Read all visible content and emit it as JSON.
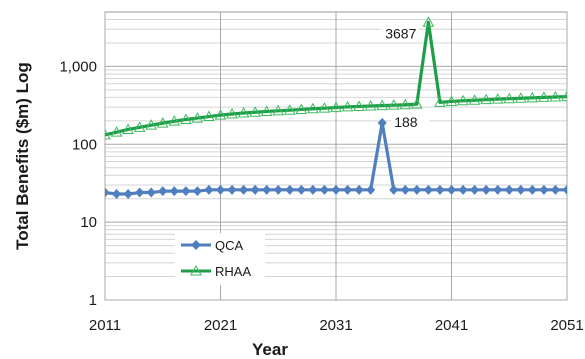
{
  "chart_data": {
    "type": "line",
    "title": "",
    "xlabel": "Year",
    "ylabel": "Total Benefits ($m) Log",
    "yscale": "log",
    "xlim": [
      2011,
      2051
    ],
    "ylim": [
      1,
      5000
    ],
    "x_ticks": [
      2011,
      2021,
      2031,
      2041,
      2051
    ],
    "y_ticks": [
      {
        "value": 1,
        "label": "1"
      },
      {
        "value": 10,
        "label": "10"
      },
      {
        "value": 100,
        "label": "100"
      },
      {
        "value": 1000,
        "label": "1,000"
      }
    ],
    "grid": true,
    "legend_position": "lower-left",
    "colors": {
      "QCA": "#4f7fbf",
      "RHAA": "#1f9e4a"
    },
    "x": [
      2011,
      2012,
      2013,
      2014,
      2015,
      2016,
      2017,
      2018,
      2019,
      2020,
      2021,
      2022,
      2023,
      2024,
      2025,
      2026,
      2027,
      2028,
      2029,
      2030,
      2031,
      2032,
      2033,
      2034,
      2035,
      2036,
      2037,
      2038,
      2039,
      2040,
      2041,
      2042,
      2043,
      2044,
      2045,
      2046,
      2047,
      2048,
      2049,
      2050,
      2051
    ],
    "series": [
      {
        "name": "QCA",
        "marker": "diamond",
        "values": [
          24,
          23,
          23,
          24,
          24,
          25,
          25,
          25,
          25,
          26,
          26,
          26,
          26,
          26,
          26,
          26,
          26,
          26,
          26,
          26,
          26,
          26,
          26,
          26,
          188,
          26,
          26,
          26,
          26,
          26,
          26,
          26,
          26,
          26,
          26,
          26,
          26,
          26,
          26,
          26,
          26
        ]
      },
      {
        "name": "RHAA",
        "marker": "triangle-open",
        "values": [
          132,
          143,
          155,
          165,
          176,
          187,
          198,
          208,
          217,
          227,
          237,
          245,
          252,
          258,
          264,
          269,
          274,
          280,
          286,
          291,
          296,
          302,
          306,
          310,
          314,
          318,
          322,
          328,
          3687,
          345,
          355,
          362,
          368,
          374,
          380,
          385,
          390,
          395,
          400,
          405,
          410
        ]
      }
    ],
    "annotations": [
      {
        "text": "3687",
        "series": "RHAA",
        "x": 2039
      },
      {
        "text": "188",
        "series": "QCA",
        "x": 2035
      }
    ]
  }
}
